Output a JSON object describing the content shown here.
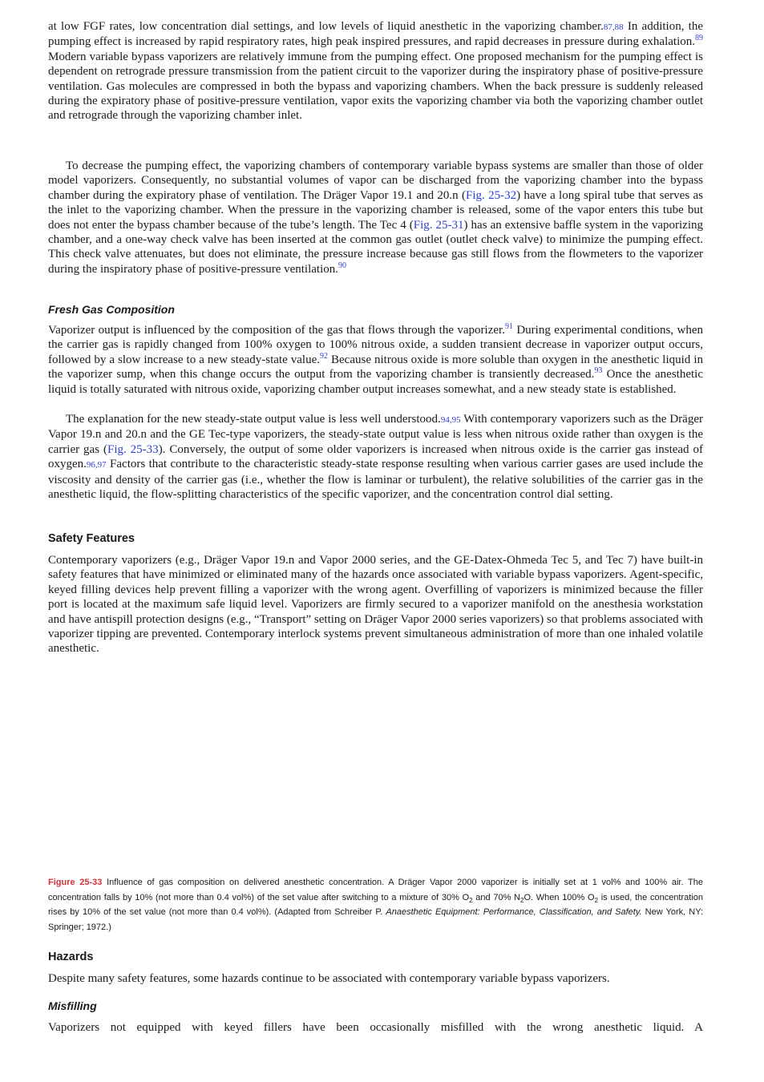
{
  "body": [
    [
      "at low FGF rates, low concentration dial settings, and low levels of liquid anesthetic in the vaporizing chamber.",
      {
        "ref": "87,88"
      },
      " In addition, the pumping effect is increased by rapid respiratory rates, high peak inspired pressures, and rapid decreases in pressure during exhalation.",
      {
        "sup": "89"
      },
      " Modern variable bypass vaporizers are relatively immune from the pumping effect. One proposed mechanism for the pumping effect is dependent on retrograde pressure transmission from the patient circuit to the vaporizer during the inspiratory phase of positive-pressure ventilation. Gas molecules are compressed in both the bypass and vaporizing chambers. When the back pressure is suddenly released during the expiratory phase of positive-pressure ventilation, vapor exits the vaporizing chamber via both the vaporizing chamber outlet and retrograde through the vaporizing chamber inlet."
    ],
    [
      "To decrease the pumping effect, the vaporizing chambers of contemporary variable bypass systems are smaller than those of older model vaporizers. Consequently, no substantial volumes of vapor can be discharged from the vaporizing chamber into the bypass chamber during the expiratory phase of ventilation. The Dräger Vapor 19.1 and 20.n (",
      {
        "link": "Fig. 25-32"
      },
      ") have a long spiral tube that serves as the inlet to the vaporizing chamber. When the pressure in the vaporizing chamber is released, some of the vapor enters this tube but does not enter the bypass chamber because of the tube’s length. The Tec 4 (",
      {
        "link": "Fig. 25-31"
      },
      ") has an extensive baffle system in the vaporizing chamber, and a one-way check valve has been inserted at the common gas outlet (outlet check valve) to minimize the pumping effect. This check valve attenuates, but does not eliminate, the pressure increase because gas still flows from the flowmeters to the vaporizer during the inspiratory phase of positive-pressure ventilation.",
      {
        "sup": "90"
      }
    ]
  ],
  "fresh_gas": {
    "heading": "Fresh Gas Composition",
    "paragraphs": [
      [
        "Vaporizer output is influenced by the composition of the gas that flows through the vaporizer.",
        {
          "sup": "91"
        },
        " During experimental conditions, when the carrier gas is rapidly changed from 100% oxygen to 100% nitrous oxide, a sudden transient decrease in vaporizer output occurs, followed by a slow increase to a new steady-state value.",
        {
          "sup": "92"
        },
        " Because nitrous oxide is more soluble than oxygen in the anesthetic liquid in the vaporizer sump, when this change occurs the output from the vaporizing chamber is transiently decreased.",
        {
          "sup": "93"
        },
        " Once the anesthetic liquid is totally saturated with nitrous oxide, vaporizing chamber output increases somewhat, and a new steady state is established."
      ],
      [
        "The explanation for the new steady-state output value is less well understood.",
        {
          "ref": "94,95"
        },
        " With contemporary vaporizers such as the Dräger Vapor 19.n and 20.n and the GE Tec-type vaporizers, the steady-state output value is less when nitrous oxide rather than oxygen is the carrier gas (",
        {
          "link": "Fig. 25-33"
        },
        "). Conversely, the output of some older vaporizers is increased when nitrous oxide is the carrier gas instead of oxygen.",
        {
          "ref": "96,97"
        },
        " Factors that contribute to the characteristic steady-state response resulting when various carrier gases are used include the viscosity and density of the carrier gas (i.e., whether the flow is laminar or turbulent), the relative solubilities of the carrier gas in the anesthetic liquid, the flow-splitting characteristics of the specific vaporizer, and the concentration control dial setting."
      ]
    ]
  },
  "safety": {
    "heading": "Safety Features",
    "paragraphs": [
      [
        "Contemporary vaporizers (e.g., Dräger Vapor 19.n and Vapor 2000 series, and the GE-Datex-Ohmeda Tec 5, and Tec 7) have built-in safety features that have minimized or eliminated many of the hazards once associated with variable bypass vaporizers. Agent-specific, keyed filling devices help prevent filling a vaporizer with the wrong agent. Overfilling of vaporizers is minimized because the filler port is located at the maximum safe liquid level. Vaporizers are firmly secured to a vaporizer manifold on the anesthesia workstation and have antispill protection designs (e.g., “Transport” setting on Dräger Vapor 2000 series vaporizers) so that problems associated with vaporizer tipping are prevented. Contemporary interlock systems prevent simultaneous administration of more than one inhaled volatile anesthetic."
      ]
    ]
  },
  "figure": {
    "label": "Figure 25-33",
    "caption": [
      " Influence of gas composition on delivered anesthetic concentration. A Dräger Vapor 2000 vaporizer is initially set at 1 vol% and 100% air. The concentration falls by 10% (not more than 0.4 vol%) of the set value after switching to a mixture of 30% O",
      {
        "sub": "2"
      },
      " and 70% N",
      {
        "sub": "2"
      },
      "O. When 100% O",
      {
        "sub": "2"
      },
      " is used, the concentration rises by 10% of the set value (not more than 0.4 vol%). (Adapted from Schreiber P. ",
      {
        "em": "Anaesthetic Equipment: Performance, Classification, and Safety."
      },
      " New York, NY: Springer; 1972.)"
    ]
  },
  "hazards": {
    "heading": "Hazards",
    "paragraphs": [
      [
        "Despite many safety features, some hazards continue to be associated with contemporary variable bypass vaporizers."
      ]
    ]
  },
  "misfilling": {
    "heading": "Misfilling",
    "paragraphs": [
      [
        "Vaporizers not equipped with keyed fillers have been occasionally misfilled with the wrong anesthetic liquid. A"
      ]
    ]
  }
}
